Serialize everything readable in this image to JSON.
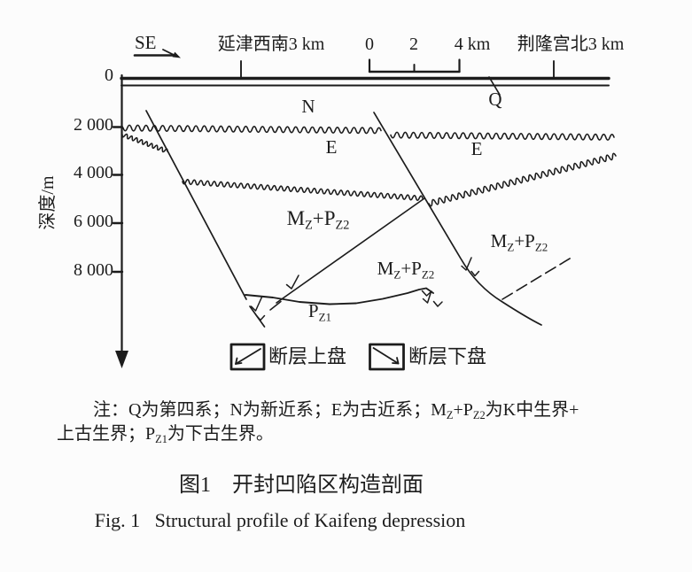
{
  "figure": {
    "orientation_label": "SE",
    "left_location": "延津西南3 km",
    "right_location": "荆隆宫北3 km",
    "scalebar": {
      "tick0": "0",
      "tick2": "2",
      "tick4": "4 km"
    },
    "y_axis": {
      "title": "深度/m",
      "ticks": [
        "0",
        "2 000",
        "4 000",
        "6 000",
        "8 000"
      ]
    },
    "strata": {
      "q": "Q",
      "n": "N",
      "e_left": "E",
      "e_right": "E",
      "mz_pz2_main": [
        {
          "t": "M"
        },
        {
          "t": "Z",
          "sub": true
        },
        {
          "t": "+P"
        },
        {
          "t": "Z2",
          "sub": true
        }
      ],
      "mz_pz2_mid": [
        {
          "t": "M"
        },
        {
          "t": "Z",
          "sub": true
        },
        {
          "t": "+P"
        },
        {
          "t": "Z2",
          "sub": true
        }
      ],
      "mz_pz2_right": [
        {
          "t": "M"
        },
        {
          "t": "Z",
          "sub": true
        },
        {
          "t": "+P"
        },
        {
          "t": "Z2",
          "sub": true
        }
      ],
      "pz1": [
        {
          "t": "P"
        },
        {
          "t": "Z1",
          "sub": true
        }
      ]
    },
    "legend": {
      "hanging_wall": "断层上盘",
      "footwall": "断层下盘"
    }
  },
  "note": {
    "line1": [
      {
        "t": "注：Q为第四系；N为新近系；E为古近系；M"
      },
      {
        "t": "Z",
        "sub": true
      },
      {
        "t": "+P"
      },
      {
        "t": "Z2",
        "sub": true
      },
      {
        "t": "为K中生界+"
      }
    ],
    "line2": [
      {
        "t": "上古生界；P"
      },
      {
        "t": "Z1",
        "sub": true
      },
      {
        "t": "为下古生界。"
      }
    ]
  },
  "captions": {
    "zh": "图1　开封凹陷区构造剖面",
    "en": "Fig. 1   Structural profile of Kaifeng depression"
  },
  "colors": {
    "ink": "#1c1c1c",
    "paper": "#fcfcfc"
  }
}
